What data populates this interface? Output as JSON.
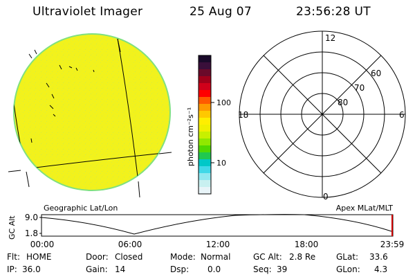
{
  "header": {
    "instrument": "Ultraviolet Imager",
    "date": "25 Aug 07",
    "time": "23:56:28 UT"
  },
  "colorbar": {
    "unit_label": "photon cm⁻²s⁻¹",
    "tick_labels": [
      "100",
      "10"
    ],
    "colors": [
      "#1a0a2a",
      "#3a0f3a",
      "#6a0a2a",
      "#a0001a",
      "#d0001a",
      "#ff0000",
      "#ff5a00",
      "#ff9a00",
      "#ffc800",
      "#ffee00",
      "#f0f000",
      "#c8f000",
      "#90e800",
      "#50d800",
      "#20c850",
      "#00c8c8",
      "#40d8e8",
      "#90e8f0",
      "#c8f0f0",
      "#e8f4f8"
    ]
  },
  "polar_grid": {
    "mlt_labels": {
      "top": "12",
      "left": "18",
      "right": "6",
      "bottom": "0"
    },
    "mlat_labels": [
      "60",
      "70",
      "80"
    ]
  },
  "coordinate_labels": {
    "left": "Geographic Lat/Lon",
    "right": "Apex MLat/MLT"
  },
  "alt_plot": {
    "axis_label": "GC Alt",
    "y_ticks": [
      "9.0",
      "1.8"
    ],
    "x_ticks": [
      "00:00",
      "06:00",
      "12:00",
      "18:00",
      "23:59"
    ]
  },
  "status": {
    "flt_label": "Flt:",
    "flt_value": "HOME",
    "door_label": "Door:",
    "door_value": "Closed",
    "mode_label": "Mode:",
    "mode_value": "Normal",
    "gcalt_label": "GC Alt:",
    "gcalt_value": "2.8 Re",
    "glat_label": "GLat:",
    "glat_value": "33.6",
    "ip_label": "IP:",
    "ip_value": "36.0",
    "gain_label": "Gain:",
    "gain_value": "14",
    "dsp_label": "Dsp:",
    "dsp_value": "0.0",
    "seq_label": "Seq:",
    "seq_value": "39",
    "glon_label": "GLon:",
    "glon_value": "4.3"
  },
  "image_colors": {
    "disk_fill": "#f2f21c",
    "disk_edge": "#7fe07f"
  }
}
